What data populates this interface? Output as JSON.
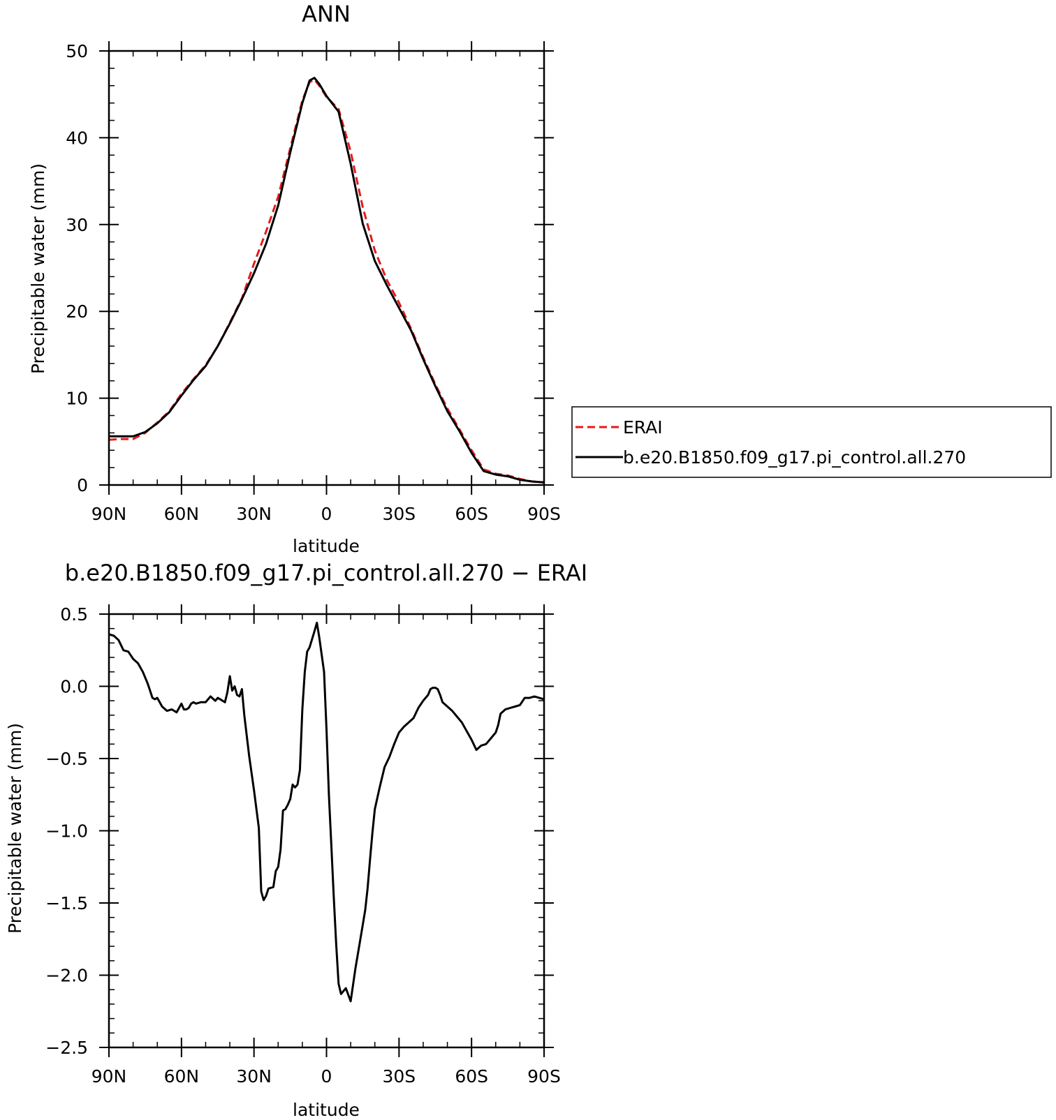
{
  "chart_data": [
    {
      "type": "line",
      "title": "ANN",
      "xlabel": "latitude",
      "ylabel": "Precipitable water (mm)",
      "xlim": [
        90,
        -90
      ],
      "ylim": [
        0,
        50
      ],
      "xticks": [
        {
          "value": 90,
          "label": "90N"
        },
        {
          "value": 60,
          "label": "60N"
        },
        {
          "value": 30,
          "label": "30N"
        },
        {
          "value": 0,
          "label": "0"
        },
        {
          "value": -30,
          "label": "30S"
        },
        {
          "value": -60,
          "label": "60S"
        },
        {
          "value": -90,
          "label": "90S"
        }
      ],
      "yticks": [
        {
          "value": 0,
          "label": "0"
        },
        {
          "value": 10,
          "label": "10"
        },
        {
          "value": 20,
          "label": "20"
        },
        {
          "value": 30,
          "label": "30"
        },
        {
          "value": 40,
          "label": "40"
        },
        {
          "value": 50,
          "label": "50"
        }
      ],
      "legend": {
        "placement": "right"
      },
      "series": [
        {
          "name": "ERAI",
          "color": "#e31a1c",
          "dashed": true,
          "x": [
            90,
            85,
            80,
            75,
            70,
            65,
            60,
            55,
            50,
            45,
            40,
            35,
            30,
            25,
            20,
            15,
            10,
            7,
            5,
            3,
            0,
            -5,
            -10,
            -15,
            -20,
            -25,
            -30,
            -35,
            -40,
            -45,
            -50,
            -55,
            -60,
            -65,
            -70,
            -75,
            -80,
            -85,
            -90
          ],
          "y": [
            5.2,
            5.3,
            5.3,
            6.0,
            7.2,
            8.5,
            10.5,
            12.2,
            13.8,
            16.0,
            18.7,
            21.5,
            25.5,
            29.2,
            33.2,
            38.8,
            44.3,
            46.4,
            46.7,
            46.0,
            44.7,
            43.3,
            38.4,
            32.0,
            27.0,
            23.6,
            21.0,
            18.0,
            14.7,
            11.6,
            8.8,
            6.4,
            4.0,
            1.8,
            1.3,
            1.1,
            0.7,
            0.4,
            0.3
          ]
        },
        {
          "name": "b.e20.B1850.f09_g17.pi_control.all.270",
          "color": "#000000",
          "dashed": false,
          "x": [
            90,
            85,
            80,
            75,
            70,
            65,
            60,
            55,
            50,
            45,
            40,
            35,
            30,
            25,
            20,
            15,
            10,
            7,
            5,
            3,
            0,
            -5,
            -10,
            -15,
            -20,
            -25,
            -30,
            -35,
            -40,
            -45,
            -50,
            -55,
            -60,
            -65,
            -70,
            -75,
            -80,
            -85,
            -90
          ],
          "y": [
            5.6,
            5.6,
            5.6,
            6.1,
            7.1,
            8.4,
            10.3,
            12.1,
            13.7,
            16.0,
            18.6,
            21.4,
            24.4,
            27.8,
            32.2,
            38.3,
            44.0,
            46.6,
            46.9,
            46.2,
            44.8,
            43.0,
            37.0,
            30.1,
            25.8,
            23.0,
            20.4,
            17.8,
            14.5,
            11.4,
            8.5,
            6.2,
            3.7,
            1.6,
            1.2,
            1.0,
            0.6,
            0.4,
            0.3
          ]
        }
      ]
    },
    {
      "type": "line",
      "title": "b.e20.B1850.f09_g17.pi_control.all.270 − ERAI",
      "xlabel": "latitude",
      "ylabel": "Precipitable water (mm)",
      "xlim": [
        90,
        -90
      ],
      "ylim": [
        -2.5,
        0.5
      ],
      "xticks": [
        {
          "value": 90,
          "label": "90N"
        },
        {
          "value": 60,
          "label": "60N"
        },
        {
          "value": 30,
          "label": "30N"
        },
        {
          "value": 0,
          "label": "0"
        },
        {
          "value": -30,
          "label": "30S"
        },
        {
          "value": -60,
          "label": "60S"
        },
        {
          "value": -90,
          "label": "90S"
        }
      ],
      "yticks": [
        {
          "value": -2.5,
          "label": "−2.5"
        },
        {
          "value": -2.0,
          "label": "−2.0"
        },
        {
          "value": -1.5,
          "label": "−1.5"
        },
        {
          "value": -1.0,
          "label": "−1.0"
        },
        {
          "value": -0.5,
          "label": "−0.5"
        },
        {
          "value": 0.0,
          "label": "0.0"
        },
        {
          "value": 0.5,
          "label": "0.5"
        }
      ],
      "series": [
        {
          "color": "#000000",
          "dashed": false,
          "x": [
            90,
            88,
            86,
            84,
            82,
            80,
            78,
            76,
            74,
            72,
            71,
            70,
            68,
            66,
            64,
            62,
            61,
            60,
            59,
            58,
            57,
            56,
            55,
            54,
            52,
            50,
            48,
            46,
            45,
            44,
            42,
            41,
            40,
            39,
            38,
            37,
            36,
            35,
            34,
            32,
            30,
            28,
            27,
            26,
            25,
            24,
            22,
            21,
            20,
            19,
            18,
            17,
            16,
            15,
            14,
            13,
            12,
            11,
            10,
            9,
            8,
            7,
            5,
            4,
            3,
            1,
            0,
            -1,
            -2,
            -3,
            -4,
            -5,
            -6,
            -8,
            -10,
            -12,
            -14,
            -16,
            -17,
            -18,
            -19,
            -20,
            -22,
            -24,
            -26,
            -28,
            -30,
            -32,
            -34,
            -36,
            -38,
            -40,
            -42,
            -43,
            -44,
            -45,
            -46,
            -47,
            -48,
            -50,
            -52,
            -54,
            -56,
            -58,
            -60,
            -62,
            -64,
            -66,
            -68,
            -70,
            -71,
            -72,
            -74,
            -76,
            -78,
            -80,
            -82,
            -84,
            -86,
            -88,
            -90
          ],
          "y": [
            0.36,
            0.35,
            0.32,
            0.25,
            0.24,
            0.19,
            0.16,
            0.1,
            0.02,
            -0.08,
            -0.09,
            -0.08,
            -0.14,
            -0.17,
            -0.16,
            -0.18,
            -0.15,
            -0.12,
            -0.16,
            -0.16,
            -0.15,
            -0.12,
            -0.11,
            -0.12,
            -0.11,
            -0.11,
            -0.07,
            -0.1,
            -0.08,
            -0.09,
            -0.11,
            -0.04,
            0.07,
            -0.03,
            0.0,
            -0.06,
            -0.07,
            -0.02,
            -0.2,
            -0.48,
            -0.72,
            -0.98,
            -1.42,
            -1.48,
            -1.45,
            -1.4,
            -1.39,
            -1.28,
            -1.25,
            -1.13,
            -0.86,
            -0.85,
            -0.82,
            -0.78,
            -0.68,
            -0.7,
            -0.68,
            -0.58,
            -0.16,
            0.1,
            0.24,
            0.27,
            0.38,
            0.44,
            0.34,
            0.1,
            -0.3,
            -0.76,
            -1.1,
            -1.46,
            -1.78,
            -2.06,
            -2.13,
            -2.09,
            -2.18,
            -1.95,
            -1.75,
            -1.55,
            -1.4,
            -1.2,
            -1.01,
            -0.85,
            -0.7,
            -0.56,
            -0.49,
            -0.4,
            -0.32,
            -0.28,
            -0.25,
            -0.22,
            -0.15,
            -0.1,
            -0.06,
            -0.02,
            -0.01,
            -0.01,
            -0.02,
            -0.06,
            -0.11,
            -0.14,
            -0.17,
            -0.21,
            -0.25,
            -0.31,
            -0.37,
            -0.44,
            -0.41,
            -0.4,
            -0.36,
            -0.32,
            -0.27,
            -0.19,
            -0.16,
            -0.15,
            -0.14,
            -0.13,
            -0.08,
            -0.08,
            -0.07,
            -0.08,
            -0.09
          ]
        }
      ]
    }
  ]
}
